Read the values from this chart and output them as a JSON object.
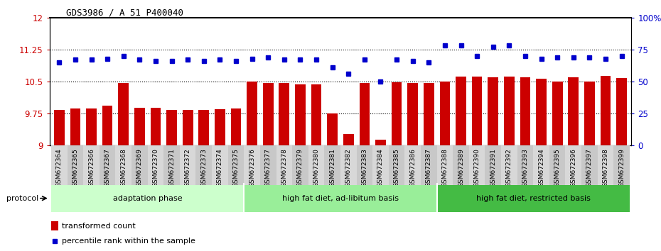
{
  "title": "GDS3986 / A_51_P400040",
  "categories": [
    "GSM672364",
    "GSM672365",
    "GSM672366",
    "GSM672367",
    "GSM672368",
    "GSM672369",
    "GSM672370",
    "GSM672371",
    "GSM672372",
    "GSM672373",
    "GSM672374",
    "GSM672375",
    "GSM672376",
    "GSM672377",
    "GSM672378",
    "GSM672379",
    "GSM672380",
    "GSM672381",
    "GSM672382",
    "GSM672383",
    "GSM672384",
    "GSM672385",
    "GSM672386",
    "GSM672387",
    "GSM672388",
    "GSM672389",
    "GSM672390",
    "GSM672391",
    "GSM672392",
    "GSM672393",
    "GSM672394",
    "GSM672395",
    "GSM672396",
    "GSM672397",
    "GSM672398",
    "GSM672399"
  ],
  "bar_values": [
    9.83,
    9.87,
    9.87,
    9.93,
    10.47,
    9.88,
    9.89,
    9.84,
    9.84,
    9.84,
    9.86,
    9.87,
    10.5,
    10.47,
    10.46,
    10.43,
    10.44,
    9.75,
    9.27,
    10.46,
    9.13,
    10.49,
    10.47,
    10.47,
    10.5,
    10.62,
    10.61,
    10.6,
    10.62,
    10.6,
    10.57,
    10.5,
    10.6,
    10.5,
    10.63,
    10.58
  ],
  "dot_values": [
    65,
    67,
    67,
    68,
    70,
    67,
    66,
    66,
    67,
    66,
    67,
    66,
    68,
    69,
    67,
    67,
    67,
    61,
    56,
    67,
    50,
    67,
    66,
    65,
    78,
    78,
    70,
    77,
    78,
    70,
    68,
    69,
    69,
    69,
    68,
    70
  ],
  "bar_color": "#cc0000",
  "dot_color": "#0000cc",
  "ylim_left": [
    9,
    12
  ],
  "ylim_right": [
    0,
    100
  ],
  "yticks_left": [
    9,
    9.75,
    10.5,
    11.25,
    12
  ],
  "yticks_right": [
    0,
    25,
    50,
    75,
    100
  ],
  "ytick_labels_left": [
    "9",
    "9.75",
    "10.5",
    "11.25",
    "12"
  ],
  "ytick_labels_right": [
    "0",
    "25",
    "50",
    "75",
    "100%"
  ],
  "groups": [
    {
      "label": "adaptation phase",
      "start": 0,
      "end": 11,
      "color": "#ccffcc"
    },
    {
      "label": "high fat diet, ad-libitum basis",
      "start": 12,
      "end": 23,
      "color": "#99ee99"
    },
    {
      "label": "high fat diet, restricted basis",
      "start": 24,
      "end": 35,
      "color": "#44bb44"
    }
  ],
  "protocol_label": "protocol",
  "legend_bar_label": "transformed count",
  "legend_dot_label": "percentile rank within the sample",
  "background_color": "#ffffff",
  "plot_bg_color": "#ffffff",
  "bar_bottom": 9
}
